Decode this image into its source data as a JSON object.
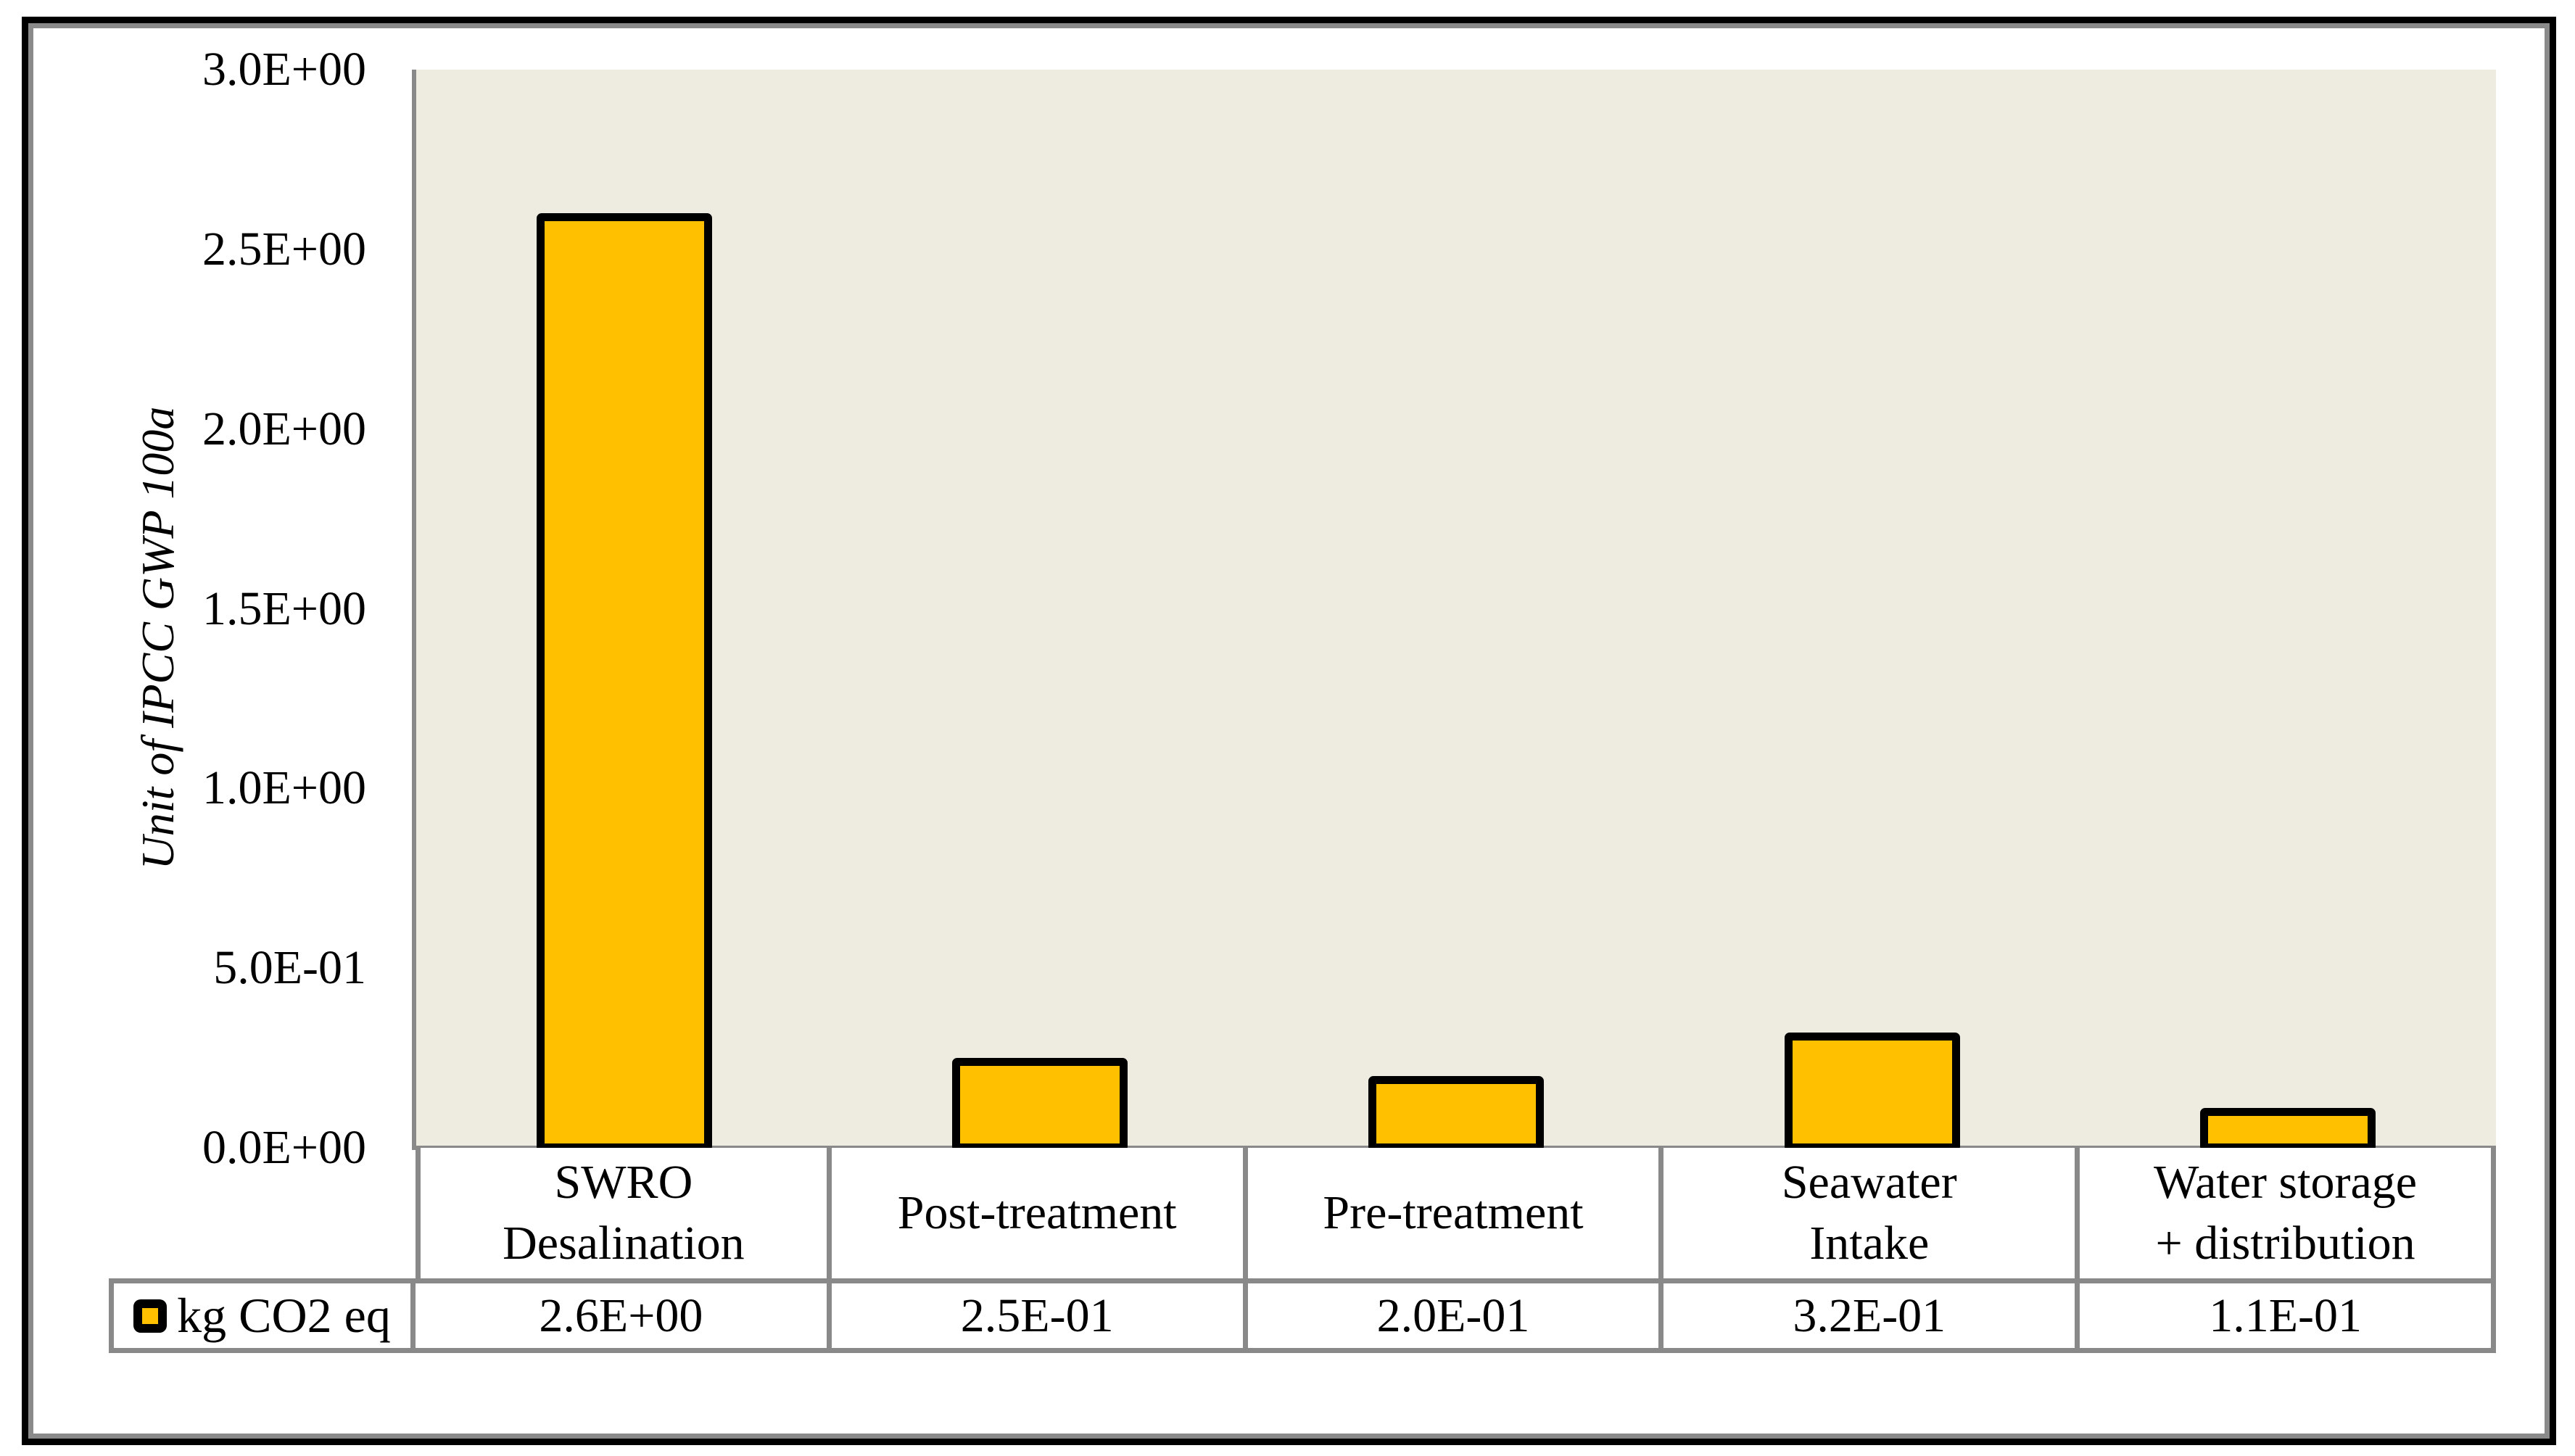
{
  "chart_data": {
    "type": "bar",
    "title": "",
    "ylabel": "Unit of IPCC GWP 100a",
    "ylim": [
      0,
      3.0
    ],
    "ytick_labels_top_to_bottom": [
      "3.0E+00",
      "2.5E+00",
      "2.0E+00",
      "1.5E+00",
      "1.0E+00",
      "5.0E-01",
      "0.0E+00"
    ],
    "grid": false,
    "legend_position": "table-row-left",
    "plot_background": "#eeece1",
    "axis_color": "#898989",
    "bar_fill": "#ffc000",
    "bar_border_color": "#000000",
    "categories": [
      "SWRO Desalination",
      "Post-treatment",
      "Pre-treatment",
      "Seawater Intake",
      "Water storage + distribution"
    ],
    "category_label_lines": [
      [
        "SWRO",
        "Desalination"
      ],
      [
        "Post-treatment"
      ],
      [
        "Pre-treatment"
      ],
      [
        "Seawater",
        "Intake"
      ],
      [
        "Water storage",
        "+ distribution"
      ]
    ],
    "series": [
      {
        "name": "kg CO2 eq",
        "values": [
          2.6,
          0.25,
          0.2,
          0.32,
          0.11
        ],
        "values_displayed": [
          "2.6E+00",
          "2.5E-01",
          "2.0E-01",
          "3.2E-01",
          "1.1E-01"
        ],
        "marker_color": "#ffc000",
        "marker_border": "#000000"
      }
    ]
  }
}
